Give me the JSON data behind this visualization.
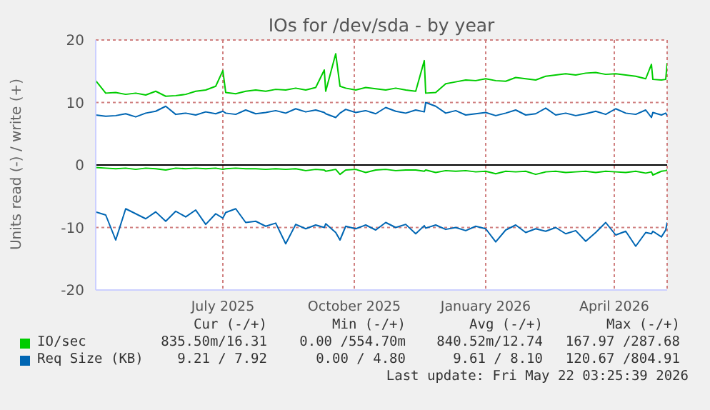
{
  "chart_data": {
    "type": "line",
    "title": "IOs for /dev/sda - by year",
    "ylabel": "Units read (-) / write (+)",
    "x": [
      "2025-04-17",
      "2025-04-24",
      "2025-05-01",
      "2025-05-08",
      "2025-05-15",
      "2025-05-22",
      "2025-05-29",
      "2025-06-05",
      "2025-06-12",
      "2025-06-19",
      "2025-06-26",
      "2025-07-03",
      "2025-07-10",
      "2025-07-15",
      "2025-07-17",
      "2025-07-24",
      "2025-07-31",
      "2025-08-07",
      "2025-08-14",
      "2025-08-21",
      "2025-08-28",
      "2025-09-04",
      "2025-09-11",
      "2025-09-18",
      "2025-09-24",
      "2025-09-25",
      "2025-10-02",
      "2025-10-05",
      "2025-10-09",
      "2025-10-16",
      "2025-10-23",
      "2025-10-30",
      "2025-11-06",
      "2025-11-13",
      "2025-11-20",
      "2025-11-27",
      "2025-12-03",
      "2025-12-04",
      "2025-12-11",
      "2025-12-18",
      "2025-12-25",
      "2026-01-01",
      "2026-01-08",
      "2026-01-15",
      "2026-01-22",
      "2026-01-29",
      "2026-02-05",
      "2026-02-12",
      "2026-02-19",
      "2026-02-26",
      "2026-03-05",
      "2026-03-12",
      "2026-03-19",
      "2026-03-26",
      "2026-04-02",
      "2026-04-09",
      "2026-04-16",
      "2026-04-23",
      "2026-04-30",
      "2026-05-07",
      "2026-05-11",
      "2026-05-12",
      "2026-05-18",
      "2026-05-21",
      "2026-05-22"
    ],
    "series": [
      {
        "name": "IO/sec",
        "color": "#00cc00",
        "values": [
          13.5,
          11.5,
          11.6,
          11.3,
          11.5,
          11.2,
          11.8,
          11.0,
          11.1,
          11.3,
          11.8,
          12.0,
          12.6,
          15.1,
          11.6,
          11.4,
          11.8,
          12.0,
          11.8,
          12.1,
          12.0,
          12.3,
          12.0,
          12.4,
          15.2,
          11.8,
          17.8,
          12.6,
          12.3,
          12.0,
          12.4,
          12.2,
          12.0,
          12.3,
          12.0,
          11.8,
          16.7,
          11.5,
          11.6,
          13.0,
          13.3,
          13.6,
          13.5,
          13.8,
          13.5,
          13.4,
          14.0,
          13.8,
          13.6,
          14.2,
          14.4,
          14.6,
          14.4,
          14.7,
          14.8,
          14.5,
          14.6,
          14.4,
          14.2,
          13.8,
          16.1,
          13.7,
          13.6,
          13.7,
          16.3
        ]
      },
      {
        "color": "#00cc00",
        "values": [
          -0.4,
          -0.5,
          -0.6,
          -0.5,
          -0.7,
          -0.5,
          -0.6,
          -0.8,
          -0.5,
          -0.6,
          -0.5,
          -0.6,
          -0.5,
          -0.7,
          -0.6,
          -0.5,
          -0.6,
          -0.6,
          -0.7,
          -0.6,
          -0.7,
          -0.6,
          -0.9,
          -0.7,
          -0.8,
          -1.0,
          -0.7,
          -1.5,
          -0.8,
          -0.7,
          -1.2,
          -0.8,
          -0.7,
          -0.9,
          -0.8,
          -0.8,
          -1.0,
          -0.8,
          -1.2,
          -0.9,
          -1.0,
          -0.9,
          -1.1,
          -1.0,
          -1.4,
          -1.0,
          -1.1,
          -1.0,
          -1.5,
          -1.1,
          -1.0,
          -1.2,
          -1.1,
          -1.0,
          -1.2,
          -1.0,
          -1.1,
          -1.2,
          -1.0,
          -1.3,
          -1.1,
          -1.6,
          -1.0,
          -0.9,
          -0.8
        ]
      },
      {
        "name": "Req Size (KB)",
        "color": "#0066b3",
        "values": [
          8.0,
          7.8,
          7.9,
          8.2,
          7.7,
          8.3,
          8.6,
          9.4,
          8.1,
          8.3,
          8.0,
          8.5,
          8.2,
          8.6,
          8.3,
          8.1,
          8.8,
          8.2,
          8.4,
          8.7,
          8.3,
          9.0,
          8.5,
          8.8,
          8.4,
          8.2,
          7.6,
          8.3,
          8.9,
          8.4,
          8.7,
          8.2,
          9.2,
          8.6,
          8.3,
          8.8,
          8.5,
          10.0,
          9.4,
          8.3,
          8.7,
          8.0,
          8.2,
          8.4,
          7.9,
          8.3,
          8.8,
          8.0,
          8.2,
          9.1,
          8.0,
          8.3,
          7.9,
          8.2,
          8.6,
          8.1,
          9.0,
          8.3,
          8.1,
          8.8,
          7.6,
          8.4,
          8.0,
          8.3,
          7.9
        ]
      },
      {
        "color": "#0066b3",
        "values": [
          -7.5,
          -8.0,
          -12.0,
          -7.0,
          -7.8,
          -8.6,
          -7.5,
          -9.0,
          -7.4,
          -8.3,
          -7.2,
          -9.5,
          -7.8,
          -8.5,
          -7.6,
          -7.0,
          -9.2,
          -9.0,
          -9.8,
          -9.3,
          -12.6,
          -9.5,
          -10.2,
          -9.6,
          -10.0,
          -9.4,
          -10.8,
          -12.0,
          -9.8,
          -10.2,
          -9.6,
          -10.4,
          -9.2,
          -10.0,
          -9.5,
          -11.0,
          -9.7,
          -10.1,
          -9.6,
          -10.3,
          -10.0,
          -10.5,
          -9.8,
          -10.2,
          -12.3,
          -10.4,
          -9.6,
          -10.8,
          -10.2,
          -10.6,
          -10.0,
          -11.0,
          -10.5,
          -12.2,
          -10.8,
          -9.2,
          -11.2,
          -10.6,
          -13.0,
          -10.8,
          -11.0,
          -10.6,
          -11.5,
          -10.4,
          -9.2
        ]
      }
    ],
    "xlim": [
      "2025-04-17",
      "2026-05-22"
    ],
    "xticks": [
      {
        "value": "2025-07-15",
        "label": "July 2025"
      },
      {
        "value": "2025-10-15",
        "label": "October 2025"
      },
      {
        "value": "2026-01-15",
        "label": "January 2026"
      },
      {
        "value": "2026-04-15",
        "label": "April 2026"
      }
    ],
    "ylim": [
      -20,
      20
    ],
    "yticks": [
      -20,
      -10,
      0,
      10,
      20
    ],
    "ref_lines": [
      {
        "axis": "y",
        "value": 0,
        "color": "#000000"
      }
    ],
    "grid": true,
    "legend": "bottom left",
    "marker": "none",
    "line_style": "solid",
    "annotations": [
      "Cur (-/+)",
      "Min (-/+)",
      "Avg (-/+)",
      "Max (-/+)",
      "835.50m/16.31",
      "0.00 /554.70m",
      "840.52m/12.74",
      "167.97 /287.68",
      "9.21 / 7.92",
      "0.00 / 4.80",
      "9.61 / 8.10",
      "120.67 /804.91",
      "Last update: Fri May 22 03:25:39 2026"
    ]
  }
}
